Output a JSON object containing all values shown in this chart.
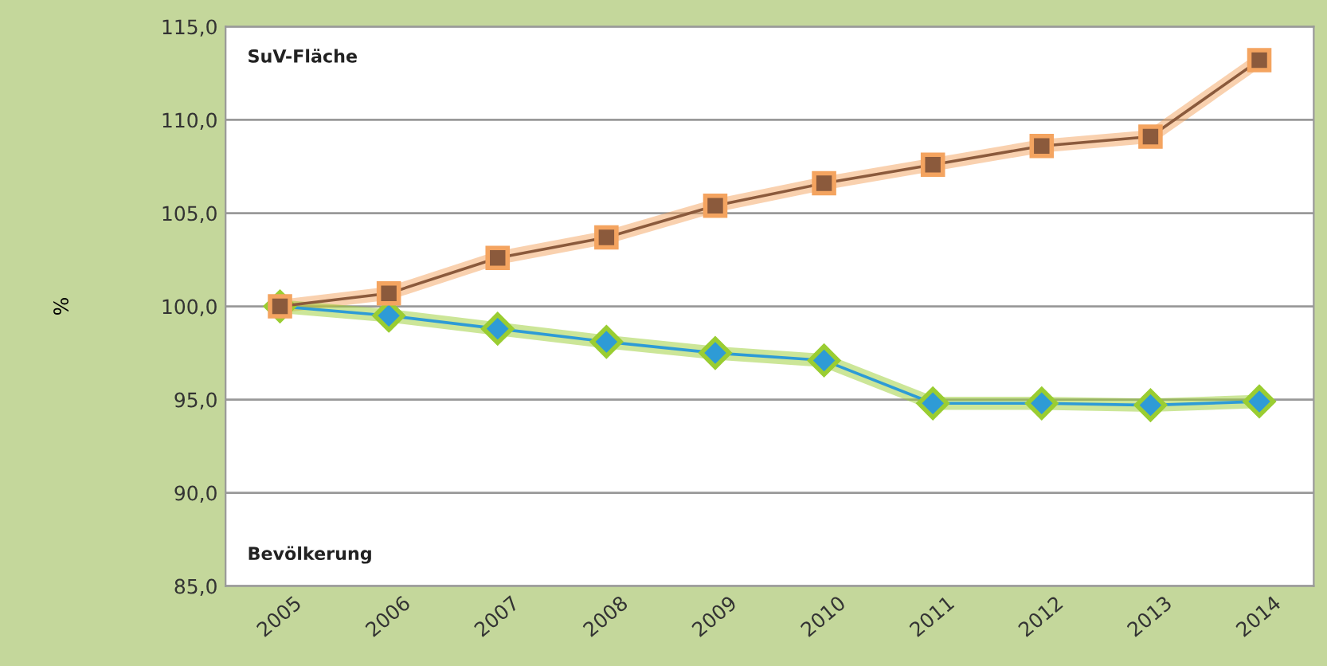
{
  "chart_data": {
    "type": "line",
    "ylabel": "%",
    "categories": [
      "2005",
      "2006",
      "2007",
      "2008",
      "2009",
      "2010",
      "2011",
      "2012",
      "2013",
      "2014"
    ],
    "series": [
      {
        "color": "#8b5a3c",
        "marker": "square",
        "values": [
          100.0,
          100.7,
          102.6,
          103.7,
          105.4,
          106.6,
          107.6,
          108.6,
          109.1,
          113.2
        ]
      },
      {
        "color": "#2e9bd6",
        "marker": "diamond",
        "values": [
          100.0,
          99.5,
          98.8,
          98.1,
          97.5,
          97.1,
          94.8,
          94.8,
          94.7,
          94.9
        ]
      }
    ],
    "annotations": [
      "SuV-Fläche",
      "Bevölkerung"
    ],
    "ylim": [
      85,
      115
    ],
    "yticks": [
      {
        "value": 85,
        "label": "85,0"
      },
      {
        "value": 90,
        "label": "90,0"
      },
      {
        "value": 95,
        "label": "95,0"
      },
      {
        "value": 100,
        "label": "100,0"
      },
      {
        "value": 105,
        "label": "105,0"
      },
      {
        "value": 110,
        "label": "110,0"
      },
      {
        "value": 115,
        "label": "115,0"
      }
    ],
    "grid": "y",
    "legend": false
  }
}
